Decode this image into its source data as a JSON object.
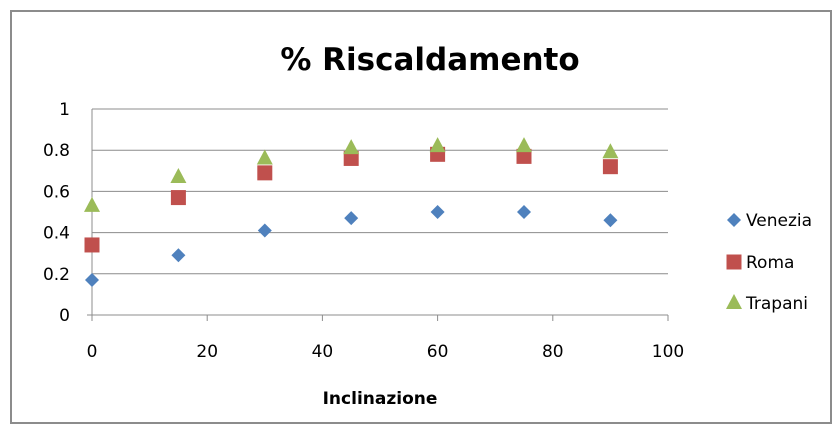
{
  "chart_data": {
    "type": "scatter",
    "title": "% Riscaldamento",
    "xlabel": "Inclinazione",
    "ylabel": "",
    "xlim": [
      0,
      100
    ],
    "ylim": [
      0,
      1
    ],
    "xticks": [
      0,
      20,
      40,
      60,
      80,
      100
    ],
    "yticks": [
      0,
      0.2,
      0.4,
      0.6,
      0.8,
      1
    ],
    "x_tick_labels": [
      "0",
      "20",
      "40",
      "60",
      "80",
      "100"
    ],
    "y_tick_labels": [
      "0",
      "0.2",
      "0.4",
      "0.6",
      "0.8",
      "1"
    ],
    "grid": "horizontal",
    "legend_position": "right",
    "x": [
      0,
      15,
      30,
      45,
      60,
      75,
      90
    ],
    "series": [
      {
        "name": "Venezia",
        "marker": "diamond",
        "color": "#4F81BD",
        "values": [
          0.17,
          0.29,
          0.41,
          0.47,
          0.5,
          0.5,
          0.46
        ]
      },
      {
        "name": "Roma",
        "marker": "square",
        "color": "#C0504D",
        "values": [
          0.34,
          0.57,
          0.69,
          0.76,
          0.78,
          0.77,
          0.72
        ]
      },
      {
        "name": "Trapani",
        "marker": "triangle",
        "color": "#9BBB59",
        "values": [
          0.53,
          0.67,
          0.76,
          0.81,
          0.82,
          0.82,
          0.79
        ]
      }
    ]
  }
}
